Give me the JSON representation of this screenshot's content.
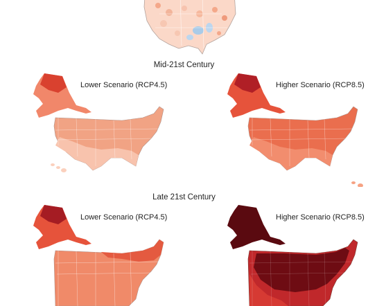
{
  "figure": {
    "sections": [
      {
        "title": "Mid-21st Century",
        "panels": [
          {
            "label": "Lower Scenario (RCP4.5)",
            "intensity": "moderate"
          },
          {
            "label": "Higher Scenario (RCP8.5)",
            "intensity": "high"
          }
        ]
      },
      {
        "title": "Late 21st Century",
        "panels": [
          {
            "label": "Lower Scenario (RCP4.5)",
            "intensity": "moderate-high"
          },
          {
            "label": "Higher Scenario (RCP8.5)",
            "intensity": "very-high"
          }
        ]
      }
    ],
    "colors": {
      "scale": [
        "#fde7dc",
        "#fbc6ad",
        "#f6a283",
        "#ef7a58",
        "#e2523a",
        "#c0282b",
        "#8c1219",
        "#5a0a10"
      ],
      "cool_anomaly": "#a9cbe8",
      "state_border": "#ffffff",
      "map_outline": "#9a8a84"
    }
  }
}
